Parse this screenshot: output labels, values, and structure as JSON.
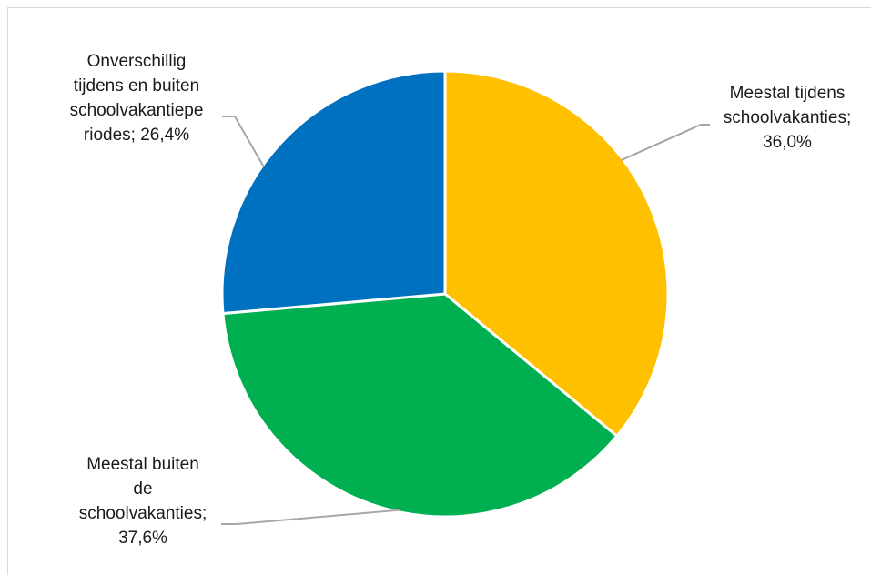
{
  "chart_data": {
    "type": "pie",
    "start_angle_deg": 0,
    "direction": "clockwise",
    "slices": [
      {
        "name": "Meestal tijdens schoolvakanties",
        "value": 36.0,
        "color": "#FFC000",
        "label": "Meestal tijdens\nschoolvakanties;\n36,0%"
      },
      {
        "name": "Meestal buiten de schoolvakanties",
        "value": 37.6,
        "color": "#00B050",
        "label": "Meestal buiten\nde\nschoolvakanties;\n37,6%"
      },
      {
        "name": "Onverschillig tijdens en buiten schoolvakantieperiodes",
        "value": 26.4,
        "color": "#0070C0",
        "label": "Onverschillig\ntijdens en buiten\nschoolvakantiepe\nriodes; 26,4%"
      }
    ],
    "leader_line_color": "#a6a6a6",
    "slice_border_color": "#ffffff"
  }
}
